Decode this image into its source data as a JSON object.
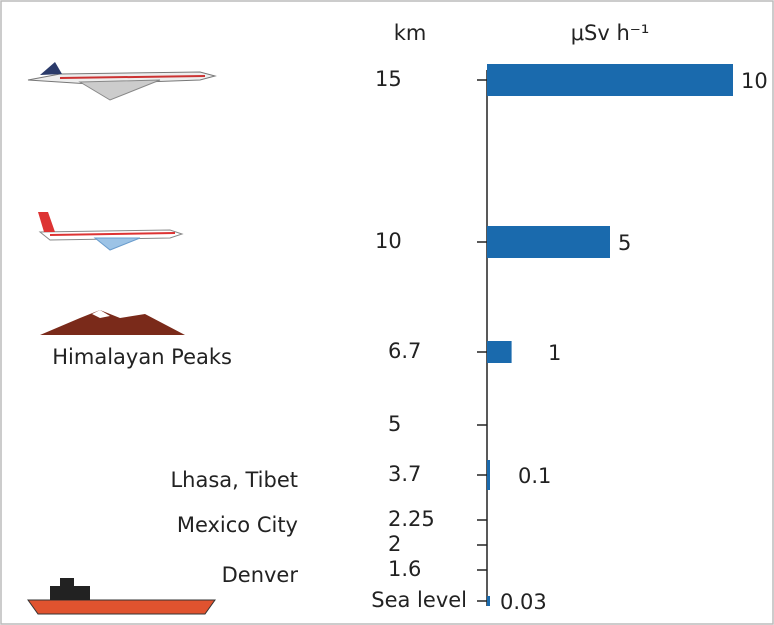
{
  "chart_data": {
    "type": "bar",
    "orientation": "horizontal",
    "y_unit": "km",
    "x_unit": "μSv h⁻¹",
    "categories": [
      "15",
      "10",
      "6.7",
      "5",
      "3.7",
      "2.25",
      "2",
      "1.6",
      "Sea level"
    ],
    "place_labels": [
      null,
      null,
      "Himalayan Peaks",
      null,
      "Lhasa, Tibet",
      "Mexico City",
      null,
      "Denver",
      null
    ],
    "values": [
      10,
      5,
      1,
      null,
      0.1,
      null,
      null,
      null,
      0.03
    ],
    "color": "#1a6aad",
    "xlim": [
      0,
      10
    ]
  }
}
